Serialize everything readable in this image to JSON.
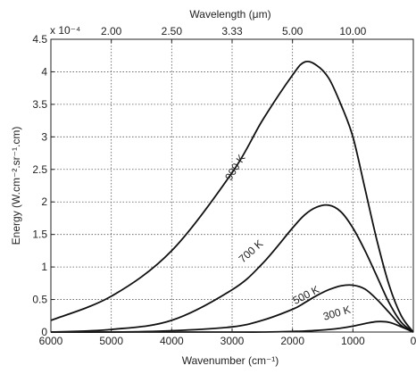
{
  "chart_data": {
    "type": "line",
    "title": "",
    "xlabel": "Wavenumber (cm⁻¹)",
    "top_xlabel": "Wavelength (μm)",
    "ylabel": "Energy  (W.cm⁻².sr⁻¹.cm)",
    "y_scale_note": "x 10⁻⁴",
    "xlim": [
      6000,
      0
    ],
    "ylim": [
      0,
      4.5
    ],
    "x_ticks": [
      "6000",
      "5000",
      "4000",
      "3000",
      "2000",
      "1000",
      "0"
    ],
    "x_tick_values": [
      6000,
      5000,
      4000,
      3000,
      2000,
      1000,
      0
    ],
    "y_ticks": [
      "0",
      "0.5",
      "1",
      "1.5",
      "2",
      "2.5",
      "3",
      "3.5",
      "4",
      "4.5"
    ],
    "y_tick_values": [
      0,
      0.5,
      1,
      1.5,
      2,
      2.5,
      3,
      3.5,
      4,
      4.5
    ],
    "top_ticks": [
      "2.00",
      "2.50",
      "3.33",
      "5.00",
      "10.00"
    ],
    "top_tick_wavenumbers": [
      5000,
      4000,
      3000,
      2000,
      1000
    ],
    "grid": true,
    "series": [
      {
        "name": "900 K",
        "x": [
          6000,
          5000,
          4000,
          3000,
          2500,
          2000,
          1800,
          1600,
          1400,
          1200,
          1000,
          800,
          600,
          400,
          200,
          0
        ],
        "values": [
          0.18,
          0.55,
          1.25,
          2.45,
          3.25,
          3.95,
          4.15,
          4.1,
          3.9,
          3.5,
          3.0,
          2.2,
          1.4,
          0.72,
          0.25,
          0.0
        ]
      },
      {
        "name": "700 K",
        "x": [
          6000,
          5000,
          4000,
          3000,
          2500,
          2000,
          1800,
          1600,
          1400,
          1200,
          1000,
          800,
          600,
          400,
          200,
          0
        ],
        "values": [
          0.0,
          0.04,
          0.18,
          0.65,
          1.05,
          1.6,
          1.8,
          1.92,
          1.95,
          1.85,
          1.6,
          1.25,
          0.85,
          0.45,
          0.15,
          0.0
        ]
      },
      {
        "name": "500 K",
        "x": [
          6000,
          5000,
          4000,
          3000,
          2500,
          2000,
          1800,
          1600,
          1400,
          1200,
          1000,
          800,
          600,
          400,
          200,
          0
        ],
        "values": [
          0.0,
          0.0,
          0.02,
          0.08,
          0.18,
          0.35,
          0.45,
          0.56,
          0.65,
          0.71,
          0.72,
          0.66,
          0.5,
          0.3,
          0.1,
          0.0
        ]
      },
      {
        "name": "300 K",
        "x": [
          6000,
          5000,
          4000,
          3000,
          2500,
          2000,
          1800,
          1600,
          1400,
          1200,
          1000,
          800,
          600,
          400,
          200,
          0
        ],
        "values": [
          0.0,
          0.0,
          0.0,
          0.0,
          0.0,
          0.01,
          0.015,
          0.025,
          0.04,
          0.06,
          0.09,
          0.13,
          0.16,
          0.15,
          0.08,
          0.0
        ]
      }
    ]
  }
}
